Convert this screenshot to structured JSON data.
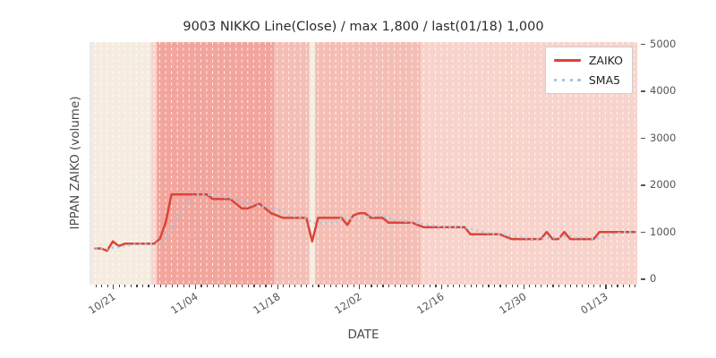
{
  "chart": {
    "title": "9003 NIKKO Line(Close) / max 1,800 / last(01/18) 1,000",
    "xlabel": "DATE",
    "ylabel": "IPPAN ZAIKO (volume)",
    "legend": {
      "items": [
        {
          "label": "ZAIKO"
        },
        {
          "label": "SMA5"
        }
      ]
    }
  },
  "chart_data": {
    "type": "line",
    "title": "9003 NIKKO Line(Close) / max 1,800 / last(01/18) 1,000",
    "xlabel": "DATE",
    "ylabel": "IPPAN ZAIKO (volume)",
    "ylim": [
      0,
      5000
    ],
    "yticks": [
      0,
      1000,
      2000,
      3000,
      4000,
      5000
    ],
    "xticks": [
      "10/21",
      "11/04",
      "11/18",
      "12/02",
      "12/16",
      "12/30",
      "01/13"
    ],
    "grid": "vertical daily white dashed lines",
    "legend_position": "upper right",
    "plot_bg": "#e9e9f0",
    "x": [
      "10/18",
      "10/19",
      "10/20",
      "10/21",
      "10/22",
      "10/23",
      "10/24",
      "10/25",
      "10/26",
      "10/27",
      "10/28",
      "10/29",
      "10/30",
      "10/31",
      "11/01",
      "11/02",
      "11/03",
      "11/04",
      "11/05",
      "11/06",
      "11/07",
      "11/08",
      "11/09",
      "11/10",
      "11/11",
      "11/12",
      "11/13",
      "11/14",
      "11/15",
      "11/16",
      "11/17",
      "11/18",
      "11/19",
      "11/20",
      "11/21",
      "11/22",
      "11/23",
      "11/24",
      "11/25",
      "11/26",
      "11/27",
      "11/28",
      "11/29",
      "11/30",
      "12/01",
      "12/02",
      "12/03",
      "12/04",
      "12/05",
      "12/06",
      "12/07",
      "12/08",
      "12/09",
      "12/10",
      "12/11",
      "12/12",
      "12/13",
      "12/14",
      "12/15",
      "12/16",
      "12/17",
      "12/18",
      "12/19",
      "12/20",
      "12/21",
      "12/22",
      "12/23",
      "12/24",
      "12/25",
      "12/26",
      "12/27",
      "12/28",
      "12/29",
      "12/30",
      "12/31",
      "01/01",
      "01/02",
      "01/03",
      "01/04",
      "01/05",
      "01/06",
      "01/07",
      "01/08",
      "01/09",
      "01/10",
      "01/11",
      "01/12",
      "01/13",
      "01/14",
      "01/15",
      "01/16",
      "01/17",
      "01/18"
    ],
    "series": [
      {
        "name": "ZAIKO",
        "style": "solid",
        "color": "#dc4437",
        "values": [
          650,
          650,
          600,
          800,
          700,
          750,
          750,
          750,
          750,
          750,
          750,
          850,
          1200,
          1800,
          1800,
          1800,
          1800,
          1800,
          1800,
          1800,
          1700,
          1700,
          1700,
          1700,
          1600,
          1500,
          1500,
          1550,
          1600,
          1500,
          1400,
          1350,
          1300,
          1300,
          1300,
          1300,
          1300,
          800,
          1300,
          1300,
          1300,
          1300,
          1300,
          1150,
          1350,
          1400,
          1400,
          1300,
          1300,
          1300,
          1200,
          1200,
          1200,
          1200,
          1200,
          1150,
          1100,
          1100,
          1100,
          1100,
          1100,
          1100,
          1100,
          1100,
          950,
          950,
          950,
          950,
          950,
          950,
          900,
          850,
          850,
          850,
          850,
          850,
          850,
          1000,
          850,
          850,
          1000,
          850,
          850,
          850,
          850,
          850,
          1000,
          1000,
          1000,
          1000,
          1000,
          1000,
          1000
        ]
      },
      {
        "name": "SMA5",
        "style": "dotted",
        "color": "#a5c6e4",
        "values": [
          650,
          650,
          640,
          670,
          680,
          700,
          720,
          750,
          740,
          750,
          750,
          770,
          860,
          1070,
          1280,
          1490,
          1680,
          1800,
          1800,
          1800,
          1780,
          1760,
          1740,
          1720,
          1680,
          1640,
          1600,
          1570,
          1550,
          1530,
          1510,
          1480,
          1430,
          1370,
          1330,
          1310,
          1300,
          1190,
          1190,
          1190,
          1190,
          1190,
          1300,
          1270,
          1280,
          1300,
          1320,
          1320,
          1350,
          1340,
          1300,
          1260,
          1240,
          1220,
          1200,
          1190,
          1170,
          1150,
          1130,
          1110,
          1100,
          1100,
          1100,
          1100,
          1070,
          1040,
          1010,
          980,
          950,
          950,
          940,
          920,
          900,
          880,
          860,
          850,
          850,
          880,
          880,
          880,
          910,
          910,
          880,
          880,
          880,
          850,
          880,
          910,
          940,
          970,
          1000,
          1000,
          1000
        ]
      }
    ],
    "background_bands": [
      {
        "from": "10/18",
        "to": "10/27",
        "tone": "cream"
      },
      {
        "from": "10/28",
        "to": "10/28",
        "tone": "light"
      },
      {
        "from": "10/29",
        "to": "11/17",
        "tone": "dark"
      },
      {
        "from": "11/18",
        "to": "11/23",
        "tone": "medium"
      },
      {
        "from": "11/24",
        "to": "11/24",
        "tone": "cream"
      },
      {
        "from": "11/25",
        "to": "12/12",
        "tone": "medium"
      },
      {
        "from": "12/13",
        "to": "01/18",
        "tone": "light"
      }
    ],
    "band_colors": {
      "cream": "#f5ecdf",
      "light": "#f8d3cb",
      "medium": "#f4beb5",
      "dark": "#f1a59c"
    }
  }
}
